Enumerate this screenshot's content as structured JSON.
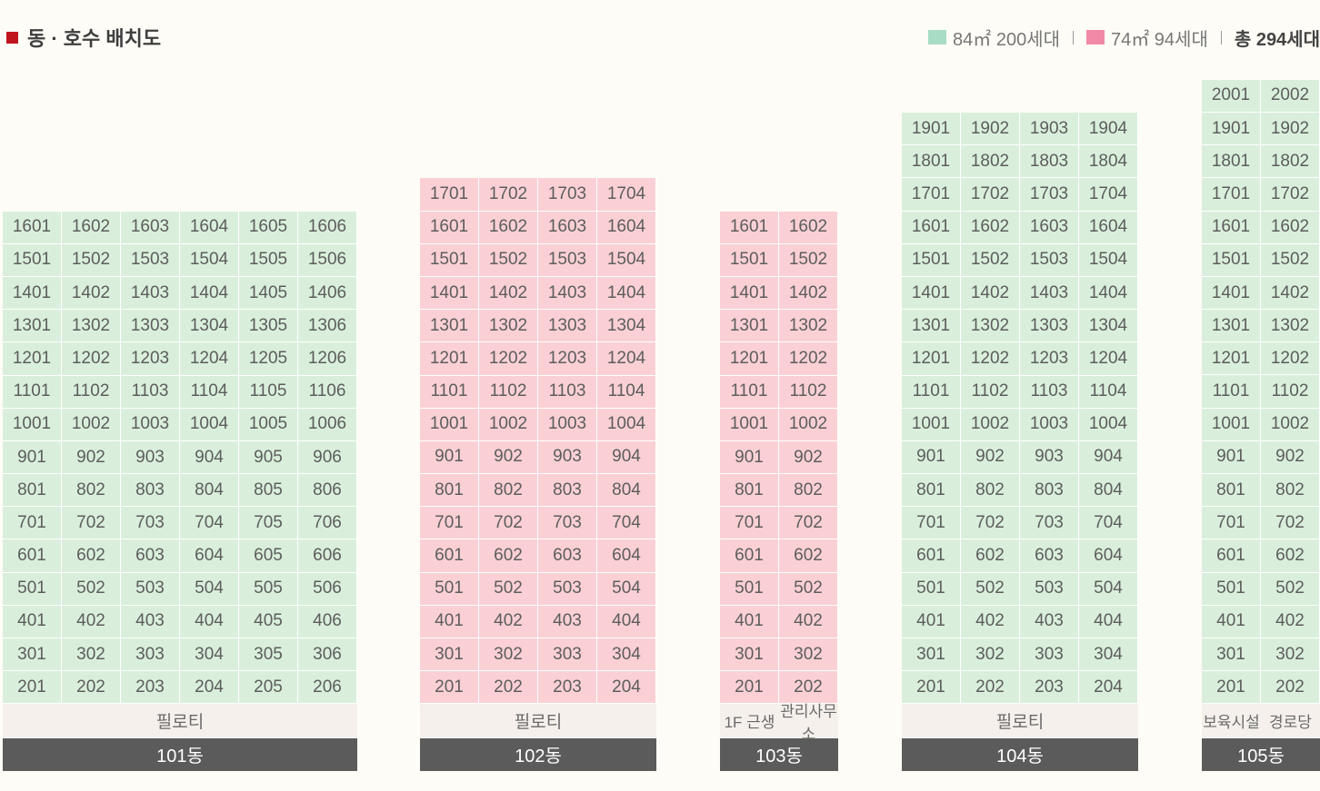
{
  "header": {
    "title": "동 · 호수 배치도",
    "legend": [
      {
        "label": "84㎡ 200세대",
        "color": "#a8dcc4"
      },
      {
        "label": "74㎡ 94세대",
        "color": "#f08aa6"
      }
    ],
    "total": "총 294세대"
  },
  "buildings": [
    {
      "name": "101동",
      "color": "green",
      "ground": [
        "필로티"
      ],
      "rows": [
        [
          "1601",
          "1602",
          "1603",
          "1604",
          "1605",
          "1606"
        ],
        [
          "1501",
          "1502",
          "1503",
          "1504",
          "1505",
          "1506"
        ],
        [
          "1401",
          "1402",
          "1403",
          "1404",
          "1405",
          "1406"
        ],
        [
          "1301",
          "1302",
          "1303",
          "1304",
          "1305",
          "1306"
        ],
        [
          "1201",
          "1202",
          "1203",
          "1204",
          "1205",
          "1206"
        ],
        [
          "1101",
          "1102",
          "1103",
          "1104",
          "1105",
          "1106"
        ],
        [
          "1001",
          "1002",
          "1003",
          "1004",
          "1005",
          "1006"
        ],
        [
          "901",
          "902",
          "903",
          "904",
          "905",
          "906"
        ],
        [
          "801",
          "802",
          "803",
          "804",
          "805",
          "806"
        ],
        [
          "701",
          "702",
          "703",
          "704",
          "705",
          "706"
        ],
        [
          "601",
          "602",
          "603",
          "604",
          "605",
          "606"
        ],
        [
          "501",
          "502",
          "503",
          "504",
          "505",
          "506"
        ],
        [
          "401",
          "402",
          "403",
          "404",
          "405",
          "406"
        ],
        [
          "301",
          "302",
          "303",
          "304",
          "305",
          "306"
        ],
        [
          "201",
          "202",
          "203",
          "204",
          "205",
          "206"
        ]
      ]
    },
    {
      "name": "102동",
      "color": "pink",
      "ground": [
        "필로티"
      ],
      "rows": [
        [
          "1701",
          "1702",
          "1703",
          "1704"
        ],
        [
          "1601",
          "1602",
          "1603",
          "1604"
        ],
        [
          "1501",
          "1502",
          "1503",
          "1504"
        ],
        [
          "1401",
          "1402",
          "1403",
          "1404"
        ],
        [
          "1301",
          "1302",
          "1303",
          "1304"
        ],
        [
          "1201",
          "1202",
          "1203",
          "1204"
        ],
        [
          "1101",
          "1102",
          "1103",
          "1104"
        ],
        [
          "1001",
          "1002",
          "1003",
          "1004"
        ],
        [
          "901",
          "902",
          "903",
          "904"
        ],
        [
          "801",
          "802",
          "803",
          "804"
        ],
        [
          "701",
          "702",
          "703",
          "704"
        ],
        [
          "601",
          "602",
          "603",
          "604"
        ],
        [
          "501",
          "502",
          "503",
          "504"
        ],
        [
          "401",
          "402",
          "403",
          "404"
        ],
        [
          "301",
          "302",
          "303",
          "304"
        ],
        [
          "201",
          "202",
          "203",
          "204"
        ]
      ]
    },
    {
      "name": "103동",
      "color": "pink",
      "ground": [
        "1F 근생",
        "관리사무소"
      ],
      "rows": [
        [
          "1601",
          "1602"
        ],
        [
          "1501",
          "1502"
        ],
        [
          "1401",
          "1402"
        ],
        [
          "1301",
          "1302"
        ],
        [
          "1201",
          "1202"
        ],
        [
          "1101",
          "1102"
        ],
        [
          "1001",
          "1002"
        ],
        [
          "901",
          "902"
        ],
        [
          "801",
          "802"
        ],
        [
          "701",
          "702"
        ],
        [
          "601",
          "602"
        ],
        [
          "501",
          "502"
        ],
        [
          "401",
          "402"
        ],
        [
          "301",
          "302"
        ],
        [
          "201",
          "202"
        ]
      ]
    },
    {
      "name": "104동",
      "color": "green",
      "ground": [
        "필로티"
      ],
      "rows": [
        [
          "1901",
          "1902",
          "1903",
          "1904"
        ],
        [
          "1801",
          "1802",
          "1803",
          "1804"
        ],
        [
          "1701",
          "1702",
          "1703",
          "1704"
        ],
        [
          "1601",
          "1602",
          "1603",
          "1604"
        ],
        [
          "1501",
          "1502",
          "1503",
          "1504"
        ],
        [
          "1401",
          "1402",
          "1403",
          "1404"
        ],
        [
          "1301",
          "1302",
          "1303",
          "1304"
        ],
        [
          "1201",
          "1202",
          "1203",
          "1204"
        ],
        [
          "1101",
          "1102",
          "1103",
          "1104"
        ],
        [
          "1001",
          "1002",
          "1003",
          "1004"
        ],
        [
          "901",
          "902",
          "903",
          "904"
        ],
        [
          "801",
          "802",
          "803",
          "804"
        ],
        [
          "701",
          "702",
          "703",
          "704"
        ],
        [
          "601",
          "602",
          "603",
          "604"
        ],
        [
          "501",
          "502",
          "503",
          "504"
        ],
        [
          "401",
          "402",
          "403",
          "404"
        ],
        [
          "301",
          "302",
          "303",
          "304"
        ],
        [
          "201",
          "202",
          "203",
          "204"
        ]
      ]
    },
    {
      "name": "105동",
      "color": "green",
      "ground": [
        "보육시설",
        "경로당"
      ],
      "rows": [
        [
          "2001",
          "2002"
        ],
        [
          "1901",
          "1902"
        ],
        [
          "1801",
          "1802"
        ],
        [
          "1701",
          "1702"
        ],
        [
          "1601",
          "1602"
        ],
        [
          "1501",
          "1502"
        ],
        [
          "1401",
          "1402"
        ],
        [
          "1301",
          "1302"
        ],
        [
          "1201",
          "1202"
        ],
        [
          "1101",
          "1102"
        ],
        [
          "1001",
          "1002"
        ],
        [
          "901",
          "902"
        ],
        [
          "801",
          "802"
        ],
        [
          "701",
          "702"
        ],
        [
          "601",
          "602"
        ],
        [
          "501",
          "502"
        ],
        [
          "401",
          "402"
        ],
        [
          "301",
          "302"
        ],
        [
          "201",
          "202"
        ]
      ]
    }
  ]
}
